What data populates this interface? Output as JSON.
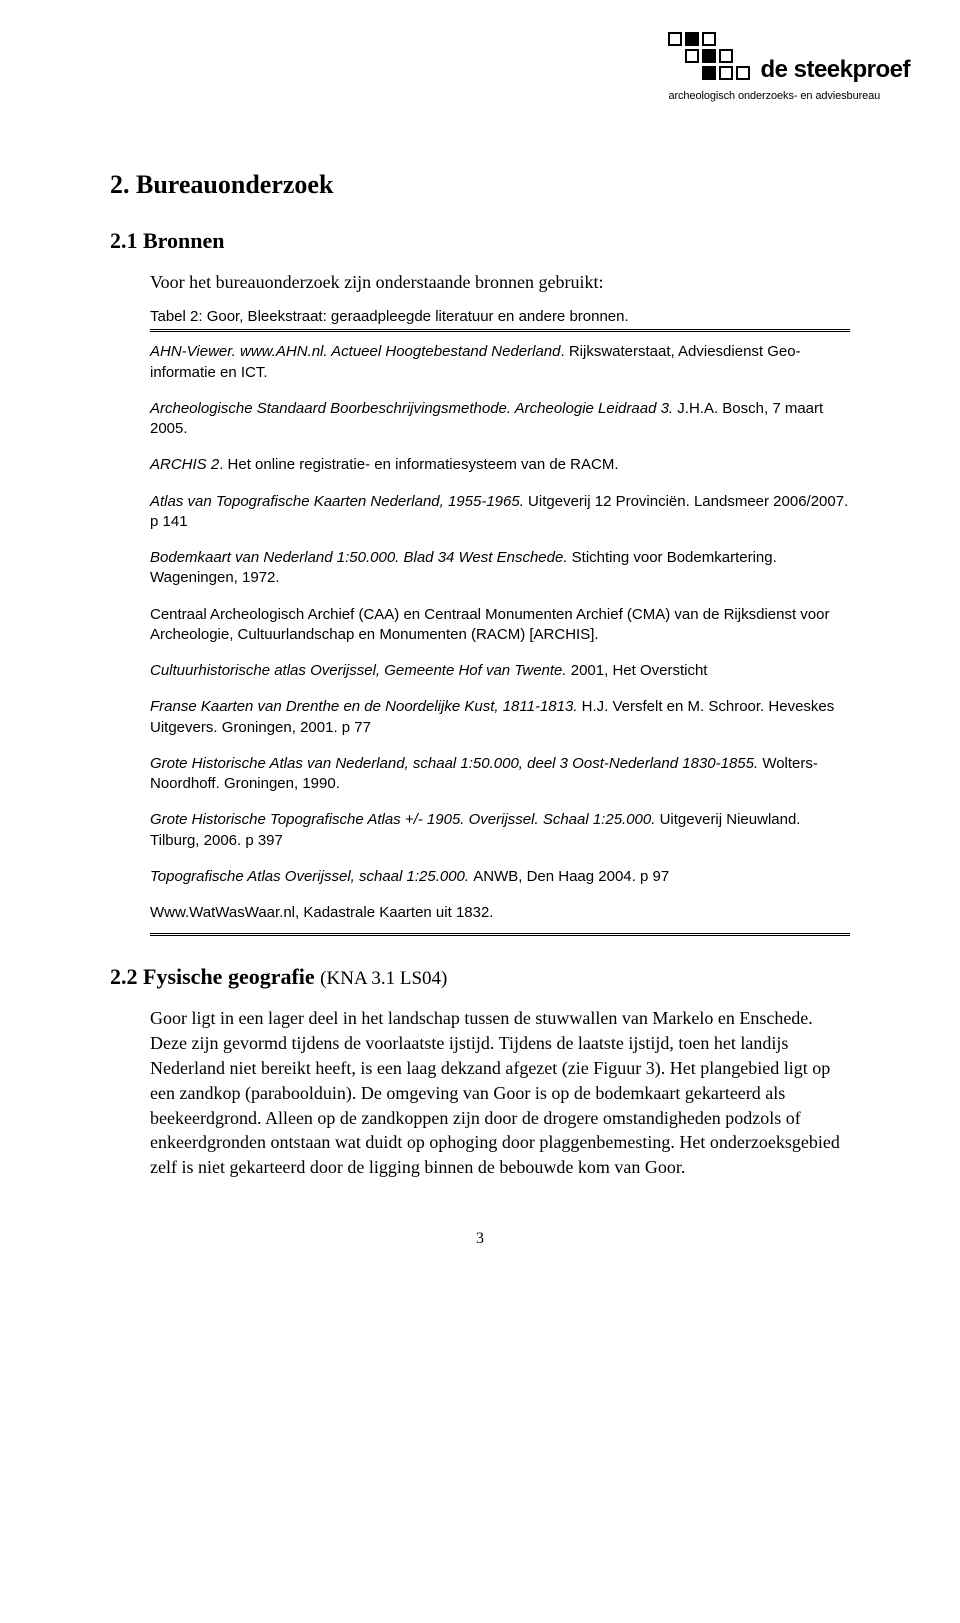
{
  "logo": {
    "title": "de steekproef",
    "subtitle": "archeologisch onderzoeks- en adviesbureau",
    "rows": [
      {
        "indent": 0,
        "cells": [
          "open",
          "filled",
          "open"
        ]
      },
      {
        "indent": 1,
        "cells": [
          "open",
          "filled",
          "open"
        ]
      },
      {
        "indent": 2,
        "cells": [
          "filled",
          "open",
          "open"
        ]
      }
    ]
  },
  "h1": "2. Bureauonderzoek",
  "h2a": "2.1 Bronnen",
  "intro": "Voor het bureauonderzoek zijn onderstaande bronnen gebruikt:",
  "table_caption": "Tabel 2: Goor, Bleekstraat: geraadpleegde literatuur en andere bronnen.",
  "refs": [
    [
      {
        "t": "AHN-Viewer. www.AHN.nl. ",
        "i": true
      },
      {
        "t": "Actueel Hoogtebestand Nederland",
        "i": true
      },
      {
        "t": ". Rijkswaterstaat, Adviesdienst Geo-informatie en ICT.",
        "i": false
      }
    ],
    [
      {
        "t": "Archeologische Standaard Boorbeschrijvingsmethode. Archeologie Leidraad 3. ",
        "i": true
      },
      {
        "t": "J.H.A. Bosch, 7 maart 2005.",
        "i": false
      }
    ],
    [
      {
        "t": "ARCHIS 2",
        "i": true
      },
      {
        "t": ". Het online registratie- en informatiesysteem van de RACM.",
        "i": false
      }
    ],
    [
      {
        "t": "Atlas van Topografische Kaarten Nederland, 1955-1965. ",
        "i": true
      },
      {
        "t": "Uitgeverij 12 Provinciën. Landsmeer 2006/2007. p 141",
        "i": false
      }
    ],
    [
      {
        "t": "Bodemkaart van Nederland 1:50.000. Blad 34 West Enschede. ",
        "i": true
      },
      {
        "t": "Stichting voor Bodemkartering. Wageningen, 1972.",
        "i": false
      }
    ],
    [
      {
        "t": "Centraal Archeologisch Archief (CAA) en Centraal Monumenten Archief (CMA) van de Rijksdienst voor Archeologie, Cultuurlandschap en Monumenten (RACM) [ARCHIS].",
        "i": false
      }
    ],
    [
      {
        "t": "Cultuurhistorische atlas Overijssel, Gemeente Hof van Twente. ",
        "i": true
      },
      {
        "t": "2001, Het Oversticht",
        "i": false
      }
    ],
    [
      {
        "t": "Franse Kaarten van Drenthe en de Noordelijke Kust, 1811-1813. ",
        "i": true
      },
      {
        "t": "H.J. Versfelt en M. Schroor. Heveskes Uitgevers. Groningen, 2001. p 77",
        "i": false
      }
    ],
    [
      {
        "t": "Grote Historische Atlas van Nederland, schaal 1:50.000, deel 3 Oost-Nederland 1830-1855. ",
        "i": true
      },
      {
        "t": "Wolters-Noordhoff. Groningen, 1990.",
        "i": false
      }
    ],
    [
      {
        "t": "Grote Historische Topografische Atlas +/- 1905. Overijssel. Schaal 1:25.000. ",
        "i": true
      },
      {
        "t": "Uitgeverij Nieuwland. Tilburg, 2006. p 397",
        "i": false
      }
    ],
    [
      {
        "t": "Topografische Atlas Overijssel, schaal 1:25.000. ",
        "i": true
      },
      {
        "t": "ANWB, Den Haag 2004. p 97",
        "i": false
      }
    ],
    [
      {
        "t": "Www.WatWasWaar.nl, Kadastrale Kaarten uit 1832.",
        "i": false
      }
    ]
  ],
  "h2b_main": "2.2 Fysische geografie ",
  "h2b_kna": "(KNA 3.1 LS04)",
  "body": "Goor ligt in een lager deel in het landschap tussen de stuwwallen van Markelo en Enschede. Deze zijn gevormd tijdens de voorlaatste ijstijd. Tijdens de laatste ijstijd, toen het landijs Nederland niet bereikt heeft, is een laag dekzand afgezet (zie Figuur 3). Het plangebied ligt op een zandkop (paraboolduin). De omgeving van Goor is op de bodemkaart gekarteerd als beekeerdgrond. Alleen op de zandkoppen zijn door de drogere omstandigheden podzols of enkeerdgronden ontstaan wat duidt op ophoging door plaggenbemesting. Het onderzoeksgebied zelf is niet gekarteerd door de ligging binnen de bebouwde kom van Goor.",
  "page_number": "3"
}
